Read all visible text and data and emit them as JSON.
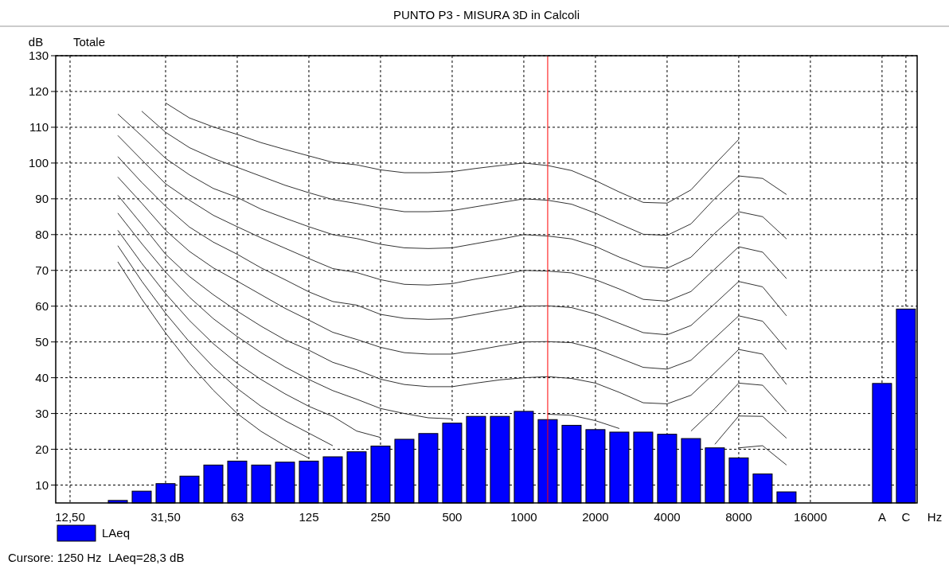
{
  "chart_data": {
    "type": "bar",
    "title": "PUNTO P3 - MISURA 3D in Calcoli",
    "subtitle": "Totale",
    "xlabel": "Hz",
    "ylabel": "dB",
    "categories": [
      "12,50",
      null,
      null,
      null,
      "31,50",
      null,
      null,
      "63",
      null,
      null,
      "125",
      null,
      null,
      "250",
      null,
      null,
      "500",
      null,
      null,
      "1000",
      null,
      null,
      "2000",
      null,
      null,
      "4000",
      null,
      null,
      "8000",
      null,
      null,
      "16000",
      null,
      null,
      "A",
      "C"
    ],
    "series": [
      {
        "type": "line",
        "color": "#333333",
        "values": [
          null,
          null,
          null,
          null,
          116.8,
          112.6,
          110.1,
          108,
          105.7,
          103.8,
          102,
          100.2,
          99.5,
          98.1,
          97.3,
          97.3,
          97.6,
          98.5,
          99.3,
          100,
          99.3,
          97.9,
          95.1,
          91.9,
          89,
          88.8,
          92.5,
          99.7,
          106.6,
          null,
          null,
          null,
          null,
          null,
          null,
          null
        ]
      },
      {
        "type": "line",
        "color": "#333333",
        "values": [
          null,
          null,
          null,
          114.5,
          108.6,
          104.3,
          101.3,
          98.8,
          96.3,
          93.8,
          91.7,
          89.8,
          88.7,
          87.4,
          86.4,
          86.4,
          86.7,
          87.8,
          88.9,
          90,
          89.6,
          88.5,
          86,
          83,
          80.1,
          79.8,
          83,
          90.1,
          96.4,
          95.7,
          91.2,
          null,
          null,
          null,
          null,
          null
        ]
      },
      {
        "type": "line",
        "color": "#333333",
        "values": [
          null,
          null,
          113.7,
          107.6,
          101.3,
          96.7,
          92.9,
          90.4,
          87.1,
          84.6,
          82.2,
          80,
          78.9,
          77.3,
          76.3,
          76.1,
          76.3,
          77.5,
          78.7,
          80,
          79.6,
          78.8,
          76.7,
          73.7,
          71.1,
          70.6,
          73.7,
          80.4,
          86.4,
          85,
          78.8,
          null,
          null,
          null,
          null,
          null
        ]
      },
      {
        "type": "line",
        "color": "#333333",
        "values": [
          null,
          null,
          107.7,
          100.9,
          94.2,
          89.6,
          85.4,
          82.2,
          79.1,
          76.2,
          73.3,
          70.5,
          69.4,
          67.4,
          66.1,
          65.9,
          66.3,
          67.6,
          68.7,
          70,
          69.8,
          69.3,
          67.4,
          64.8,
          61.9,
          61.4,
          64.1,
          70.4,
          76.6,
          75.1,
          67.7,
          null,
          null,
          null,
          null,
          null
        ]
      },
      {
        "type": "line",
        "color": "#333333",
        "values": [
          null,
          null,
          101.8,
          94.6,
          87.9,
          82.1,
          77.9,
          74.5,
          70.7,
          67.4,
          64,
          61.3,
          60.3,
          57.7,
          56.6,
          56.3,
          56.5,
          57.7,
          58.9,
          60,
          60.1,
          59.6,
          57.8,
          55.2,
          52.6,
          52,
          54.6,
          60.7,
          66.9,
          65.4,
          57.3,
          null,
          null,
          null,
          null,
          null
        ]
      },
      {
        "type": "line",
        "color": "#333333",
        "values": [
          null,
          null,
          96.1,
          88.8,
          81.2,
          75.3,
          70.7,
          67,
          63.2,
          59.4,
          56.1,
          52.7,
          50.7,
          48.5,
          47,
          46.6,
          46.6,
          47.7,
          48.9,
          50,
          50.1,
          49.8,
          48.1,
          45.5,
          42.9,
          42.4,
          44.9,
          51.1,
          57.3,
          55.8,
          47.9,
          null,
          null,
          null,
          null,
          null
        ]
      },
      {
        "type": "line",
        "color": "#333333",
        "values": [
          null,
          null,
          91,
          82.9,
          74.5,
          68.3,
          63.2,
          58.6,
          54.4,
          50.6,
          47.7,
          44.3,
          42.2,
          39.6,
          38.1,
          37.5,
          37.5,
          38.5,
          39.4,
          40,
          40.3,
          39.8,
          38.5,
          35.9,
          33,
          32.7,
          35.1,
          41.4,
          47.9,
          46.6,
          38.1,
          null,
          null,
          null,
          null,
          null
        ]
      },
      {
        "type": "line",
        "color": "#333333",
        "values": [
          null,
          null,
          86,
          77.5,
          69.5,
          62.5,
          56.5,
          51.5,
          47,
          43,
          39.5,
          36.4,
          34,
          31.4,
          30,
          28.8,
          28.5,
          null,
          null,
          null,
          29.8,
          29.5,
          28,
          25.8,
          null,
          null,
          25.1,
          31.4,
          38.5,
          37.9,
          30.5,
          null,
          null,
          null,
          null,
          null
        ]
      },
      {
        "type": "line",
        "color": "#333333",
        "values": [
          null,
          null,
          81.2,
          72,
          63.5,
          56,
          49.5,
          44,
          39.5,
          35.5,
          32,
          29.2,
          25.1,
          23.3,
          null,
          null,
          null,
          null,
          null,
          null,
          null,
          null,
          null,
          null,
          null,
          null,
          null,
          21.4,
          29.3,
          29.2,
          23.1,
          null,
          null,
          null,
          null,
          null
        ]
      },
      {
        "type": "line",
        "color": "#333333",
        "values": [
          null,
          null,
          76.9,
          67,
          58,
          50,
          43,
          37,
          32,
          28,
          24.5,
          21,
          null,
          null,
          null,
          null,
          null,
          null,
          null,
          null,
          null,
          null,
          null,
          null,
          null,
          null,
          null,
          null,
          20.4,
          21,
          15.6,
          null,
          null,
          null,
          null,
          null
        ]
      },
      {
        "type": "line",
        "color": "#333333",
        "values": [
          null,
          null,
          72.4,
          62,
          52.5,
          44,
          36.5,
          30,
          25,
          21,
          17.5,
          null,
          null,
          null,
          null,
          null,
          null,
          null,
          null,
          null,
          null,
          null,
          null,
          null,
          null,
          null,
          null,
          null,
          null,
          null,
          null,
          null,
          null,
          null,
          null,
          null
        ]
      },
      {
        "name": "LAeq",
        "color": "#0000ff",
        "values": [
          null,
          null,
          5.7,
          8.3,
          10.4,
          12.5,
          15.6,
          16.7,
          15.6,
          16.4,
          16.7,
          17.9,
          19.3,
          20.9,
          22.8,
          24.4,
          27.3,
          29.2,
          29.2,
          30.6,
          28.3,
          26.7,
          25.5,
          24.8,
          24.8,
          24.2,
          23,
          20.4,
          17.6,
          13.1,
          8.1,
          null,
          null,
          null,
          38.4,
          59.2
        ]
      }
    ],
    "ylim": [
      5,
      130
    ],
    "yticks": [
      10,
      20,
      30,
      40,
      50,
      60,
      70,
      80,
      90,
      100,
      110,
      120,
      130
    ],
    "grid": true,
    "legend": "bottom left",
    "annotations": [
      "Cursore: 1250 Hz  LAeq=28,3 dB"
    ]
  }
}
